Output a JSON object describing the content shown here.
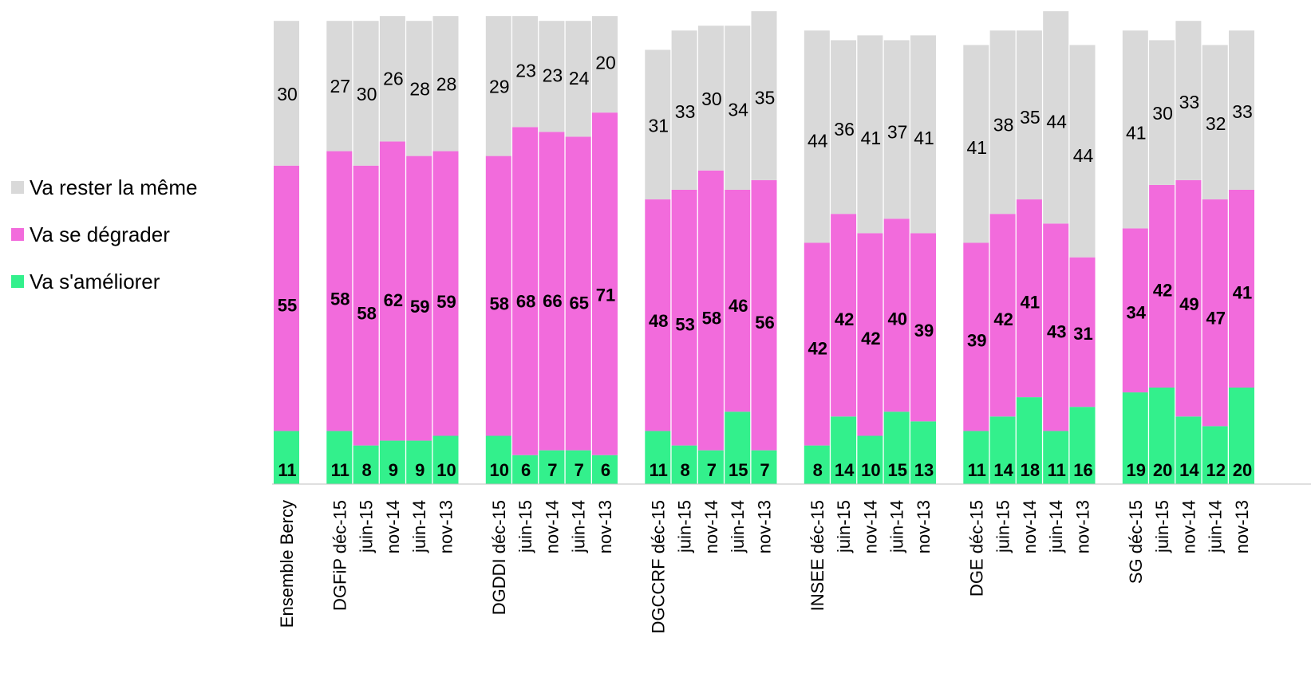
{
  "chart_data": {
    "type": "bar",
    "stacked": true,
    "title": "",
    "xlabel": "",
    "ylabel": "",
    "ylim": [
      0,
      100
    ],
    "grid": false,
    "legend_position": "left",
    "categories": [
      "Ensemble Bercy",
      "DGFiP déc-15",
      "juin-15",
      "nov-14",
      "juin-14",
      "nov-13",
      "DGDDI déc-15",
      "juin-15",
      "nov-14",
      "juin-14",
      "nov-13",
      "DGCCRF déc-15",
      "juin-15",
      "nov-14",
      "juin-14",
      "nov-13",
      "INSEE déc-15",
      "juin-15",
      "nov-14",
      "juin-14",
      "nov-13",
      "DGE déc-15",
      "juin-15",
      "nov-14",
      "juin-14",
      "nov-13",
      "SG déc-15",
      "juin-15",
      "nov-14",
      "juin-14",
      "nov-13"
    ],
    "group_sizes": [
      1,
      5,
      5,
      5,
      5,
      5,
      5
    ],
    "series": [
      {
        "name": "Va s'améliorer",
        "color": "#33f08c",
        "values": [
          11,
          11,
          8,
          9,
          9,
          10,
          10,
          6,
          7,
          7,
          6,
          11,
          8,
          7,
          15,
          7,
          8,
          14,
          10,
          15,
          13,
          11,
          14,
          18,
          11,
          16,
          19,
          20,
          14,
          12,
          20
        ]
      },
      {
        "name": "Va se dégrader",
        "color": "#f26bdc",
        "values": [
          55,
          58,
          58,
          62,
          59,
          59,
          58,
          68,
          66,
          65,
          71,
          48,
          53,
          58,
          46,
          56,
          42,
          42,
          42,
          40,
          39,
          39,
          42,
          41,
          43,
          31,
          34,
          42,
          49,
          47,
          41
        ]
      },
      {
        "name": "Va rester la même",
        "color": "#d9d9d9",
        "values": [
          30,
          27,
          30,
          26,
          28,
          28,
          29,
          23,
          23,
          24,
          20,
          31,
          33,
          30,
          34,
          35,
          44,
          36,
          41,
          37,
          41,
          41,
          38,
          35,
          44,
          44,
          41,
          30,
          33,
          32,
          33
        ]
      }
    ]
  }
}
